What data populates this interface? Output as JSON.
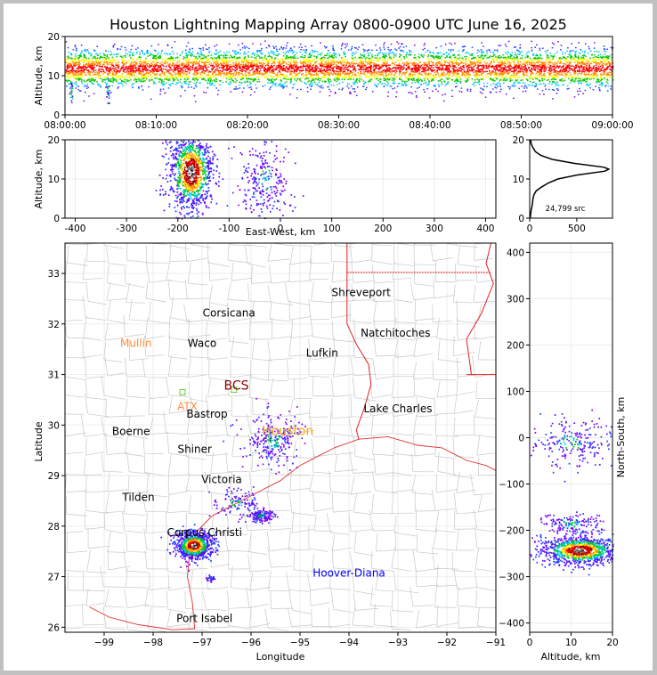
{
  "title": "Houston Lightning Mapping Array 0800-0900 UTC June 16, 2025",
  "colors": {
    "frame": "#c0c0c0",
    "ocean_coast": "#e03030",
    "state_border": "#e02020",
    "county": "#c8c8c8",
    "grid": "#e6e6e6"
  },
  "chart_data": [
    {
      "id": "altitude_time",
      "type": "scatter",
      "title": "",
      "xlabel": "",
      "ylabel": "Altitude, km",
      "x_ticks": [
        "08:00:00",
        "08:10:00",
        "08:20:00",
        "08:30:00",
        "08:40:00",
        "08:50:00",
        "09:00:00"
      ],
      "y_ticks": [
        "0",
        "10",
        "20"
      ],
      "ylim": [
        0,
        20
      ],
      "xlim_minutes": [
        0,
        60
      ],
      "band": {
        "center_km": 12,
        "spread_km": 2.5,
        "min_km": 3,
        "max_km": 19
      },
      "color_scale": [
        "#6a00ff",
        "#1e3cff",
        "#00c8ff",
        "#00c800",
        "#ffff00",
        "#ff8c00",
        "#ff0000"
      ]
    },
    {
      "id": "altitude_eastwest",
      "type": "scatter",
      "title": "",
      "xlabel": "East-West, km",
      "ylabel": "Altitude, km",
      "x_ticks": [
        "-400",
        "-300",
        "-200",
        "-100",
        "0",
        "100",
        "200",
        "300",
        "400"
      ],
      "y_ticks": [
        "0",
        "10",
        "20"
      ],
      "xlim": [
        -420,
        420
      ],
      "ylim": [
        0,
        20
      ],
      "clusters": [
        {
          "x_km": -175,
          "z_km": 12,
          "sx": 22,
          "sz": 5,
          "n": 1100,
          "intense": true
        },
        {
          "x_km": -30,
          "z_km": 10,
          "sx": 25,
          "sz": 5,
          "n": 260,
          "intense": false
        }
      ]
    },
    {
      "id": "altitude_histogram",
      "type": "line",
      "title": "",
      "xlabel": "",
      "ylabel": "",
      "x_ticks": [
        "0",
        "500"
      ],
      "y_ticks": [
        "0",
        "10",
        "20"
      ],
      "xlim": [
        0,
        880
      ],
      "ylim": [
        0,
        20
      ],
      "total_label": "24,799 src",
      "profile": [
        {
          "z": 0.0,
          "count": 5
        },
        {
          "z": 1.0,
          "count": 10
        },
        {
          "z": 2.0,
          "count": 15
        },
        {
          "z": 3.0,
          "count": 25
        },
        {
          "z": 4.0,
          "count": 30
        },
        {
          "z": 5.0,
          "count": 35
        },
        {
          "z": 6.0,
          "count": 45
        },
        {
          "z": 7.0,
          "count": 70
        },
        {
          "z": 8.0,
          "count": 130
        },
        {
          "z": 9.0,
          "count": 200
        },
        {
          "z": 10.0,
          "count": 300
        },
        {
          "z": 11.0,
          "count": 500
        },
        {
          "z": 12.0,
          "count": 800
        },
        {
          "z": 12.5,
          "count": 840
        },
        {
          "z": 13.0,
          "count": 790
        },
        {
          "z": 14.0,
          "count": 470
        },
        {
          "z": 15.0,
          "count": 240
        },
        {
          "z": 16.0,
          "count": 120
        },
        {
          "z": 17.0,
          "count": 60
        },
        {
          "z": 18.0,
          "count": 35
        },
        {
          "z": 19.0,
          "count": 15
        },
        {
          "z": 20.0,
          "count": 10
        }
      ]
    },
    {
      "id": "plan_view_map",
      "type": "scatter",
      "title": "",
      "xlabel": "Longitude",
      "ylabel": "Latitude",
      "x_ticks": [
        "−99",
        "−98",
        "−97",
        "−96",
        "−95",
        "−94",
        "−93",
        "−92",
        "−91"
      ],
      "y_ticks": [
        "26",
        "27",
        "28",
        "29",
        "30",
        "31",
        "32",
        "33"
      ],
      "xlim": [
        -99.8,
        -91.0
      ],
      "ylim": [
        25.9,
        33.6
      ],
      "labels": [
        {
          "text": "Shreveport",
          "lon": -93.75,
          "lat": 32.55,
          "color": "#000000",
          "size": 12
        },
        {
          "text": "Corsicana",
          "lon": -96.45,
          "lat": 32.15,
          "color": "#000000",
          "size": 12
        },
        {
          "text": "Natchitoches",
          "lon": -93.05,
          "lat": 31.75,
          "color": "#000000",
          "size": 12
        },
        {
          "text": "Mullin",
          "lon": -98.35,
          "lat": 31.55,
          "color": "#ff8c40",
          "size": 12
        },
        {
          "text": "Waco",
          "lon": -97.0,
          "lat": 31.55,
          "color": "#000000",
          "size": 12
        },
        {
          "text": "Lufkin",
          "lon": -94.55,
          "lat": 31.35,
          "color": "#000000",
          "size": 12
        },
        {
          "text": "BCS",
          "lon": -96.3,
          "lat": 30.7,
          "color": "#8b0000",
          "size": 14
        },
        {
          "text": "ATX",
          "lon": -97.3,
          "lat": 30.3,
          "color": "#ff8c40",
          "size": 12
        },
        {
          "text": "Lake Charles",
          "lon": -93.0,
          "lat": 30.25,
          "color": "#000000",
          "size": 12
        },
        {
          "text": "Bastrop",
          "lon": -96.9,
          "lat": 30.15,
          "color": "#000000",
          "size": 12
        },
        {
          "text": "Houston",
          "lon": -95.25,
          "lat": 29.8,
          "color": "#ffa500",
          "size": 14
        },
        {
          "text": "Boerne",
          "lon": -98.45,
          "lat": 29.8,
          "color": "#000000",
          "size": 12
        },
        {
          "text": "Shiner",
          "lon": -97.15,
          "lat": 29.45,
          "color": "#000000",
          "size": 12
        },
        {
          "text": "Victoria",
          "lon": -96.6,
          "lat": 28.85,
          "color": "#000000",
          "size": 12
        },
        {
          "text": "Tilden",
          "lon": -98.3,
          "lat": 28.5,
          "color": "#000000",
          "size": 12
        },
        {
          "text": "Corpus Christi",
          "lon": -96.95,
          "lat": 27.8,
          "color": "#000000",
          "size": 12
        },
        {
          "text": "Hoover-Diana",
          "lon": -94.0,
          "lat": 27.0,
          "color": "#0000ff",
          "size": 12
        },
        {
          "text": "Port Isabel",
          "lon": -96.95,
          "lat": 26.1,
          "color": "#000000",
          "size": 12
        }
      ],
      "stations": [
        {
          "lon": -97.4,
          "lat": 30.65
        },
        {
          "lon": -96.35,
          "lat": 30.7
        }
      ],
      "clusters": [
        {
          "lon": -97.18,
          "lat": 27.63,
          "sx": 0.18,
          "sy": 0.13,
          "n": 1000,
          "intense": true
        },
        {
          "lon": -95.8,
          "lat": 28.22,
          "sx": 0.14,
          "sy": 0.06,
          "n": 160,
          "intense": false
        },
        {
          "lon": -95.55,
          "lat": 29.7,
          "sx": 0.28,
          "sy": 0.25,
          "n": 260,
          "intense": false
        },
        {
          "lon": -96.3,
          "lat": 28.45,
          "sx": 0.22,
          "sy": 0.15,
          "n": 110,
          "intense": false
        },
        {
          "lon": -96.82,
          "lat": 26.98,
          "sx": 0.05,
          "sy": 0.03,
          "n": 30,
          "intense": false
        }
      ]
    },
    {
      "id": "northsouth_altitude",
      "type": "scatter",
      "title": "",
      "xlabel": "Altitude, km",
      "ylabel": "North-South, km",
      "x_ticks": [
        "0",
        "10",
        "20"
      ],
      "y_ticks": [
        "−400",
        "−300",
        "−200",
        "−100",
        "0",
        "100",
        "200",
        "300",
        "400"
      ],
      "xlim": [
        0,
        20
      ],
      "ylim": [
        -420,
        420
      ],
      "clusters": [
        {
          "z_km": 12,
          "y_km": -242,
          "sz": 4.5,
          "sy": 15,
          "n": 1100,
          "intense": true
        },
        {
          "z_km": 10,
          "y_km": -185,
          "sz": 4,
          "sy": 10,
          "n": 150,
          "intense": false
        },
        {
          "z_km": 10,
          "y_km": -10,
          "sz": 5,
          "sy": 25,
          "n": 220,
          "intense": false
        }
      ]
    }
  ]
}
